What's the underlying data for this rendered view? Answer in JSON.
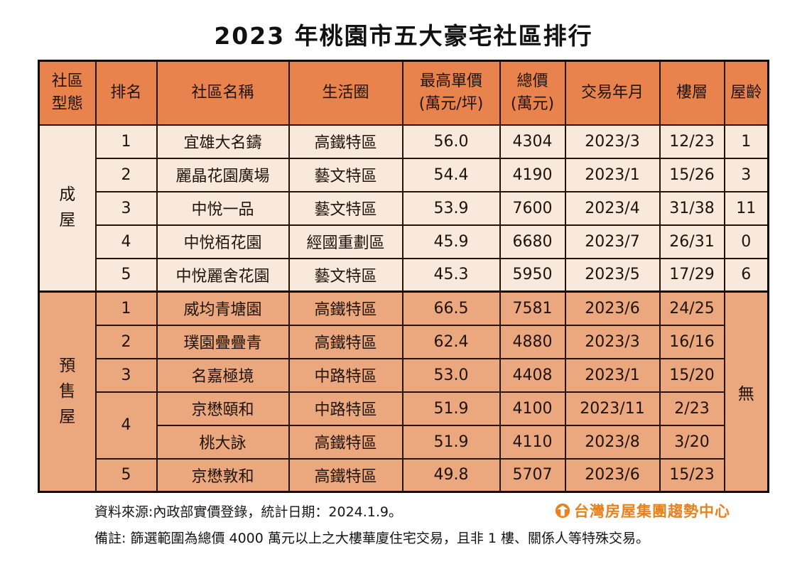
{
  "title": "2023 年桃園市五大豪宅社區排行",
  "colors": {
    "header_bg": "#E8834E",
    "completed_section_bg": "#F8E9DC",
    "presale_section_bg": "#EBA87E",
    "grid_border": "#241409",
    "outer_border": "#0E0903",
    "text": "#20130A",
    "logo_orange": "#E8821F"
  },
  "table": {
    "headers": {
      "type_line1": "社區",
      "type_line2": "型態",
      "rank": "排名",
      "name": "社區名稱",
      "district": "生活圈",
      "unit_price_line1": "最高單價",
      "unit_price_line2": "(萬元/坪)",
      "total_price_line1": "總價",
      "total_price_line2": "(萬元)",
      "date": "交易年月",
      "floor": "樓層",
      "age": "屋齡"
    },
    "sections": [
      {
        "id": "completed",
        "type_label": "成屋",
        "rows": [
          {
            "rank": "1",
            "rank_span": 1,
            "name": "宜雄大名鑄",
            "district": "高鐵特區",
            "unit_price": "56.0",
            "total_price": "4304",
            "date": "2023/3",
            "floor": "12/23",
            "age": "1"
          },
          {
            "rank": "2",
            "rank_span": 1,
            "name": "麗晶花園廣場",
            "district": "藝文特區",
            "unit_price": "54.4",
            "total_price": "4190",
            "date": "2023/1",
            "floor": "15/26",
            "age": "3"
          },
          {
            "rank": "3",
            "rank_span": 1,
            "name": "中悅一品",
            "district": "藝文特區",
            "unit_price": "53.9",
            "total_price": "7600",
            "date": "2023/4",
            "floor": "31/38",
            "age": "11"
          },
          {
            "rank": "4",
            "rank_span": 1,
            "name": "中悅栢花園",
            "district": "經國重劃區",
            "unit_price": "45.9",
            "total_price": "6680",
            "date": "2023/7",
            "floor": "26/31",
            "age": "0"
          },
          {
            "rank": "5",
            "rank_span": 1,
            "name": "中悅麗舍花園",
            "district": "藝文特區",
            "unit_price": "45.3",
            "total_price": "5950",
            "date": "2023/5",
            "floor": "17/29",
            "age": "6"
          }
        ]
      },
      {
        "id": "presale",
        "type_label": "預售屋",
        "age_merged": "無",
        "rows": [
          {
            "rank": "1",
            "rank_span": 1,
            "name": "威均青塘園",
            "district": "高鐵特區",
            "unit_price": "66.5",
            "total_price": "7581",
            "date": "2023/6",
            "floor": "24/25"
          },
          {
            "rank": "2",
            "rank_span": 1,
            "name": "璞園疊疊青",
            "district": "高鐵特區",
            "unit_price": "62.4",
            "total_price": "4880",
            "date": "2023/3",
            "floor": "16/16"
          },
          {
            "rank": "3",
            "rank_span": 1,
            "name": "名嘉極境",
            "district": "中路特區",
            "unit_price": "53.0",
            "total_price": "4408",
            "date": "2023/1",
            "floor": "15/20"
          },
          {
            "rank": "4",
            "rank_span": 2,
            "name": "京懋頤和",
            "district": "中路特區",
            "unit_price": "51.9",
            "total_price": "4100",
            "date": "2023/11",
            "floor": "2/23"
          },
          {
            "rank": null,
            "rank_span": 0,
            "name": "桃大詠",
            "district": "高鐵特區",
            "unit_price": "51.9",
            "total_price": "4110",
            "date": "2023/8",
            "floor": "3/20"
          },
          {
            "rank": "5",
            "rank_span": 1,
            "name": "京懋敦和",
            "district": "高鐵特區",
            "unit_price": "49.8",
            "total_price": "5707",
            "date": "2023/6",
            "floor": "15/23"
          }
        ]
      }
    ]
  },
  "footer": {
    "source": "資料來源:內政部實價登錄，統計日期：2024.1.9。",
    "note": "備註: 篩選範圍為總價 4000 萬元以上之大樓華廈住宅交易，且非 1 樓、關係人等特殊交易。",
    "logo_text": "台灣房屋集團趨勢中心"
  },
  "chart_data": {
    "type": "table",
    "title": "2023 年桃園市五大豪宅社區排行",
    "columns": [
      "社區型態",
      "排名",
      "社區名稱",
      "生活圈",
      "最高單價(萬元/坪)",
      "總價(萬元)",
      "交易年月",
      "樓層",
      "屋齡"
    ],
    "rows": [
      [
        "成屋",
        "1",
        "宜雄大名鑄",
        "高鐵特區",
        "56.0",
        "4304",
        "2023/3",
        "12/23",
        "1"
      ],
      [
        "成屋",
        "2",
        "麗晶花園廣場",
        "藝文特區",
        "54.4",
        "4190",
        "2023/1",
        "15/26",
        "3"
      ],
      [
        "成屋",
        "3",
        "中悅一品",
        "藝文特區",
        "53.9",
        "7600",
        "2023/4",
        "31/38",
        "11"
      ],
      [
        "成屋",
        "4",
        "中悅栢花園",
        "經國重劃區",
        "45.9",
        "6680",
        "2023/7",
        "26/31",
        "0"
      ],
      [
        "成屋",
        "5",
        "中悅麗舍花園",
        "藝文特區",
        "45.3",
        "5950",
        "2023/5",
        "17/29",
        "6"
      ],
      [
        "預售屋",
        "1",
        "威均青塘園",
        "高鐵特區",
        "66.5",
        "7581",
        "2023/6",
        "24/25",
        "無"
      ],
      [
        "預售屋",
        "2",
        "璞園疊疊青",
        "高鐵特區",
        "62.4",
        "4880",
        "2023/3",
        "16/16",
        "無"
      ],
      [
        "預售屋",
        "3",
        "名嘉極境",
        "中路特區",
        "53.0",
        "4408",
        "2023/1",
        "15/20",
        "無"
      ],
      [
        "預售屋",
        "4",
        "京懋頤和",
        "中路特區",
        "51.9",
        "4100",
        "2023/11",
        "2/23",
        "無"
      ],
      [
        "預售屋",
        "4",
        "桃大詠",
        "高鐵特區",
        "51.9",
        "4110",
        "2023/8",
        "3/20",
        "無"
      ],
      [
        "預售屋",
        "5",
        "京懋敦和",
        "高鐵特區",
        "49.8",
        "5707",
        "2023/6",
        "15/23",
        "無"
      ]
    ]
  }
}
